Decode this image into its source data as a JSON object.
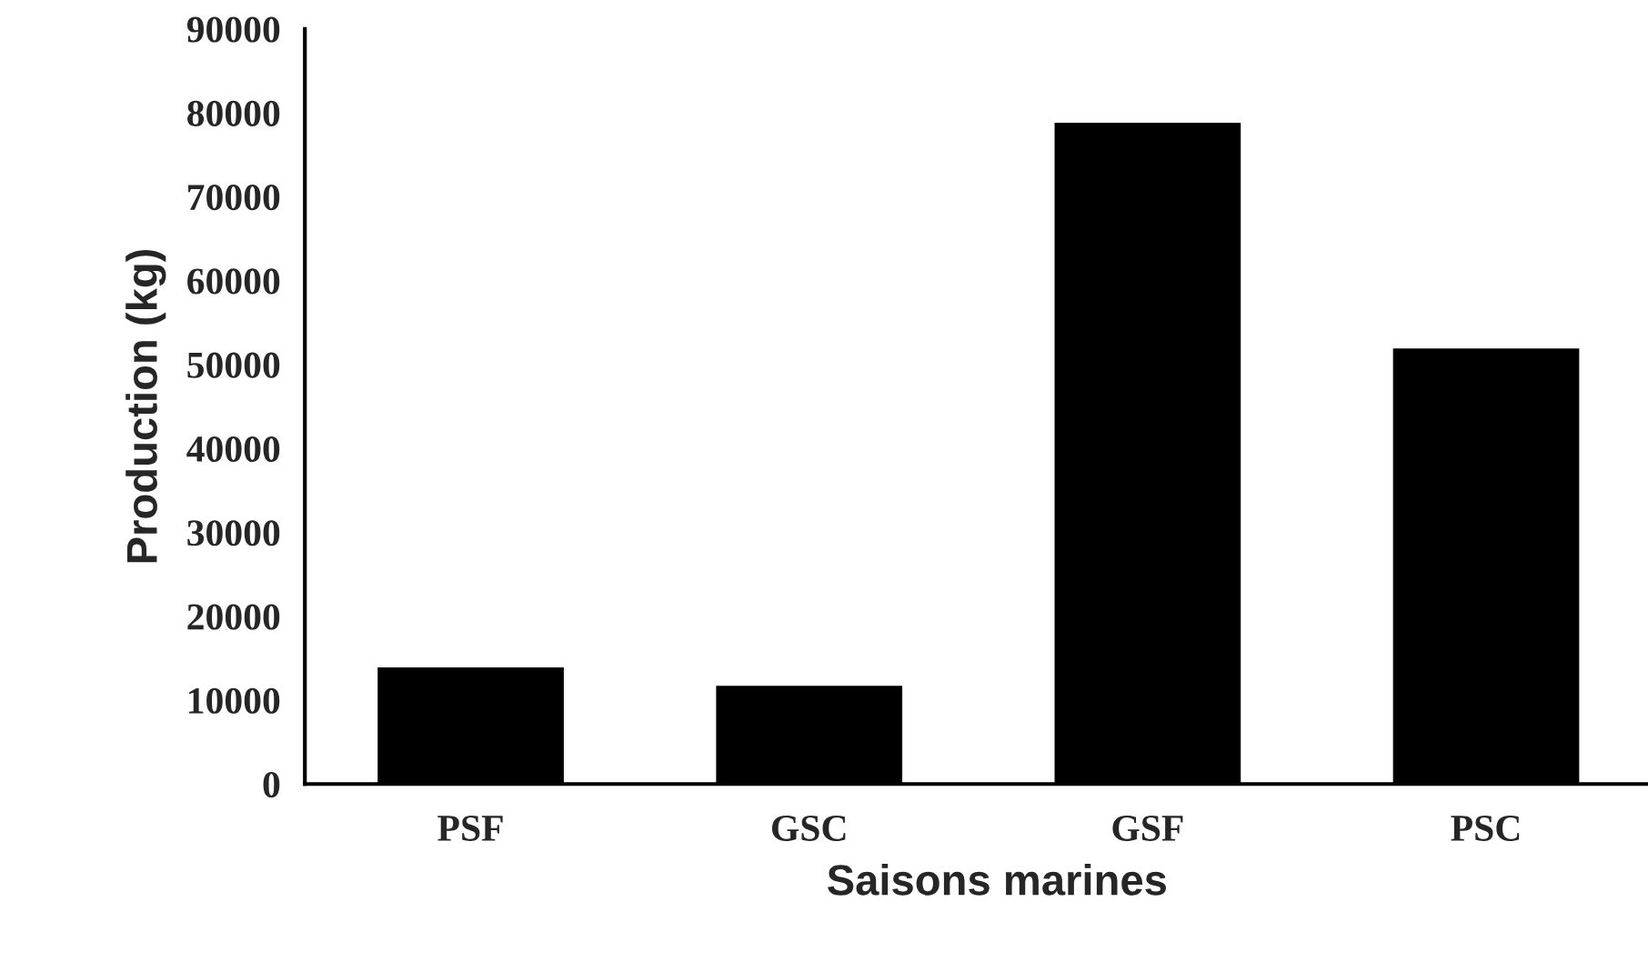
{
  "chart_data": {
    "type": "bar",
    "xlabel": "Saisons marines",
    "ylabel": "Production (kg)",
    "categories": [
      "PSF",
      "GSC",
      "GSF",
      "PSC"
    ],
    "values": [
      13900,
      11700,
      78800,
      51900
    ],
    "color": "#000000",
    "ylim": [
      0,
      90000
    ],
    "yticks": [
      0,
      10000,
      20000,
      30000,
      40000,
      50000,
      60000,
      70000,
      80000,
      90000
    ],
    "grid": false,
    "legend": false
  }
}
